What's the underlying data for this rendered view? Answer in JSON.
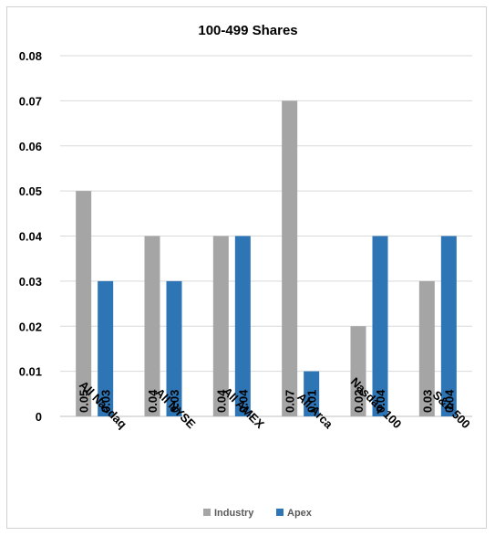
{
  "chart_data": {
    "type": "bar",
    "title": "100-499 Shares",
    "xlabel": "",
    "ylabel": "",
    "categories": [
      "All Nasdaq",
      "All NYSE",
      "All AMEX",
      "All Arca",
      "Nasdaq 100",
      "S&P 500"
    ],
    "series": [
      {
        "name": "Industry",
        "values": [
          0.05,
          0.04,
          0.04,
          0.07,
          0.02,
          0.03
        ],
        "color": "#A5A5A5"
      },
      {
        "name": "Apex",
        "values": [
          0.03,
          0.03,
          0.04,
          0.01,
          0.04,
          0.04
        ],
        "color": "#2E75B6"
      }
    ],
    "ylim": [
      0,
      0.08
    ],
    "yticks": [
      "0",
      "0.01",
      "0.02",
      "0.03",
      "0.04",
      "0.05",
      "0.06",
      "0.07",
      "0.08"
    ],
    "data_labels": true,
    "grid": true,
    "legend_position": "bottom"
  }
}
